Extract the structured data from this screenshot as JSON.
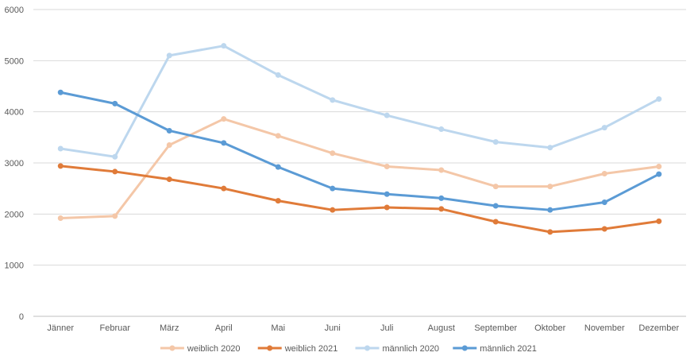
{
  "chart_data": {
    "type": "line",
    "title": "",
    "xlabel": "",
    "ylabel": "",
    "ylim": [
      0,
      6000
    ],
    "yticks": [
      0,
      1000,
      2000,
      3000,
      4000,
      5000,
      6000
    ],
    "grid": true,
    "legend_position": "bottom",
    "categories": [
      "Jänner",
      "Februar",
      "März",
      "April",
      "Mai",
      "Juni",
      "Juli",
      "August",
      "September",
      "Oktober",
      "November",
      "Dezember"
    ],
    "series": [
      {
        "name": "weiblich 2020",
        "color": "#f4c7a8",
        "values": [
          1920,
          1960,
          3350,
          3860,
          3530,
          3190,
          2930,
          2860,
          2540,
          2540,
          2790,
          2930
        ]
      },
      {
        "name": "weiblich 2021",
        "color": "#e07b39",
        "values": [
          2940,
          2830,
          2680,
          2500,
          2260,
          2080,
          2130,
          2100,
          1850,
          1650,
          1710,
          1860
        ]
      },
      {
        "name": "männlich 2020",
        "color": "#bdd7ee",
        "values": [
          3280,
          3120,
          5100,
          5290,
          4720,
          4230,
          3930,
          3660,
          3410,
          3300,
          3690,
          4250
        ]
      },
      {
        "name": "männlich 2021",
        "color": "#5b9bd5",
        "values": [
          4380,
          4160,
          3630,
          3390,
          2920,
          2500,
          2390,
          2310,
          2160,
          2080,
          2230,
          2780
        ]
      }
    ]
  }
}
